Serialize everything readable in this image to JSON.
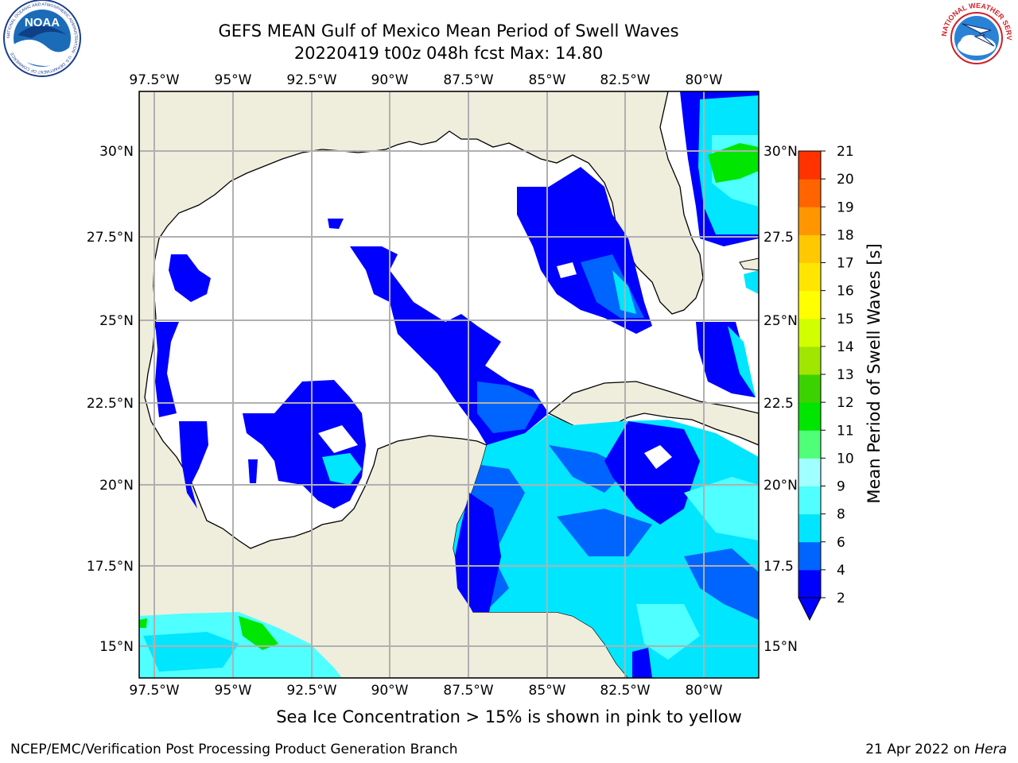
{
  "header": {
    "title": "GEFS MEAN Gulf of Mexico Mean Period of Swell Waves",
    "subtitle": "20220419 t00z 048h fcst   Max: 14.80"
  },
  "logos": {
    "noaa": {
      "text": "NOAA",
      "ring_text": "NATIONAL OCEANIC AND ATMOSPHERIC ADMINISTRATION · U.S. DEPARTMENT OF COMMERCE"
    },
    "nws": {
      "ring_text": "NATIONAL WEATHER SERVICE"
    }
  },
  "map": {
    "lon_labels": [
      "97.5°W",
      "95°W",
      "92.5°W",
      "90°W",
      "87.5°W",
      "85°W",
      "82.5°W",
      "80°W"
    ],
    "lat_labels_left": [
      "30°N",
      "27.5°N",
      "25°N",
      "22.5°N",
      "20°N",
      "17.5°N",
      "15°N"
    ],
    "lat_labels_right": [
      "30°N",
      "27.5",
      "25°N",
      "22.5",
      "20°N",
      "17.5",
      "15°N"
    ],
    "land_color": "#efeddc",
    "ocean_color": "#ffffff",
    "grid_color": "#b0b0b0"
  },
  "colorbar": {
    "label": "Mean Period of Swell Waves [s]",
    "ticks": [
      "2",
      "4",
      "6",
      "8",
      "9",
      "10",
      "11",
      "12",
      "13",
      "14",
      "15",
      "16",
      "17",
      "18",
      "19",
      "20",
      "21"
    ],
    "colors": [
      "#0000ff",
      "#0064ff",
      "#00e6ff",
      "#50ffff",
      "#a0ffff",
      "#50ff78",
      "#00e600",
      "#3cd200",
      "#a0e600",
      "#d2ff00",
      "#ffff00",
      "#ffe600",
      "#ffc800",
      "#ff9600",
      "#ff6400",
      "#ff3200",
      "#ff0000"
    ],
    "extend_color": "#0000ff"
  },
  "notes": {
    "sea_ice": "Sea Ice Concentration > 15% is shown in pink to yellow"
  },
  "footer": {
    "left": "NCEP/EMC/Verification Post Processing Product Generation Branch",
    "date": "21 Apr 2022 on ",
    "machine": "Hera"
  }
}
